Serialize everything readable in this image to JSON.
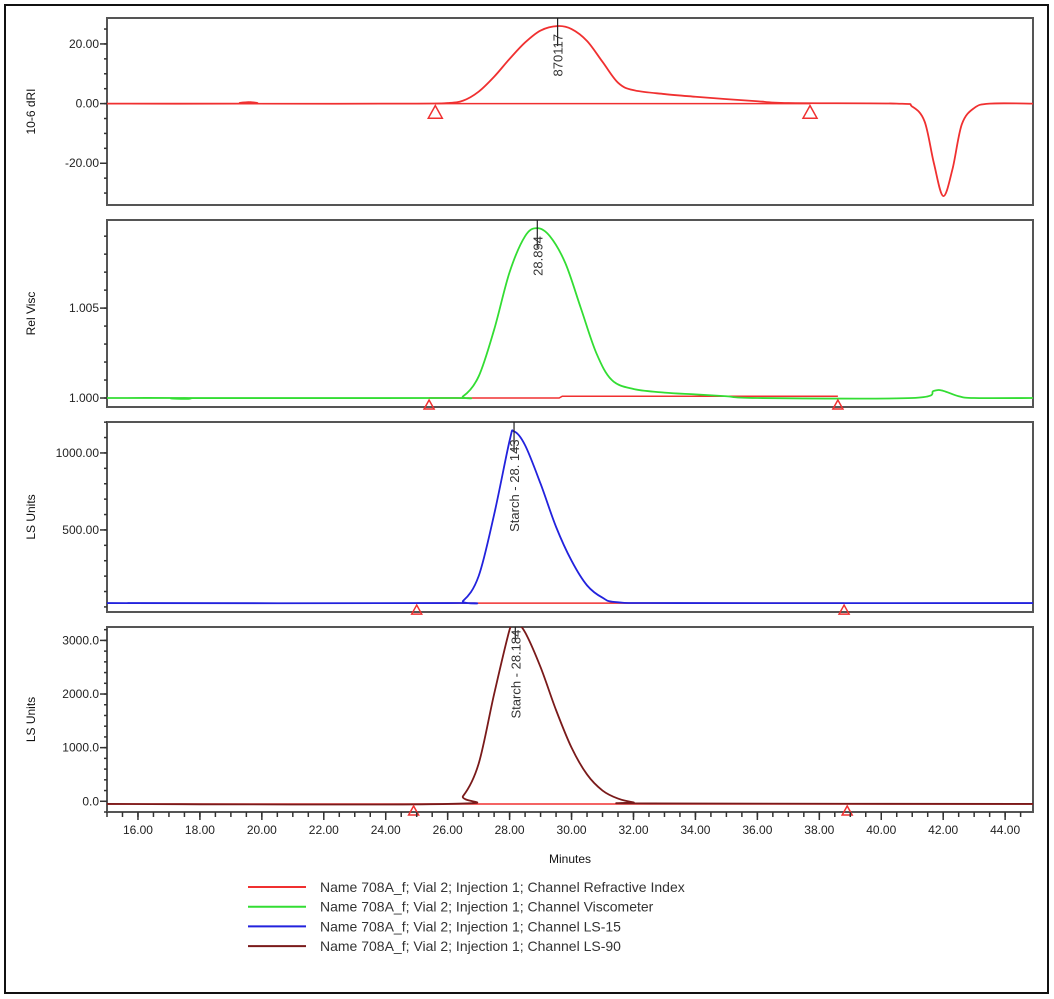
{
  "x_axis": {
    "label": "Minutes",
    "xlim": [
      15.0,
      44.9
    ],
    "ticks": [
      "16.00",
      "18.00",
      "20.00",
      "22.00",
      "24.00",
      "26.00",
      "28.00",
      "30.00",
      "32.00",
      "34.00",
      "36.00",
      "38.00",
      "40.00",
      "42.00",
      "44.00"
    ],
    "tick_values": [
      16,
      18,
      20,
      22,
      24,
      26,
      28,
      30,
      32,
      34,
      36,
      38,
      40,
      42,
      44
    ],
    "minor_step": 0.5
  },
  "legend": [
    {
      "label": "Name 708A_f; Vial 2; Injection 1; Channel Refractive Index",
      "color": "#f03030"
    },
    {
      "label": "Name 708A_f; Vial 2; Injection 1; Channel Viscometer",
      "color": "#33dd33"
    },
    {
      "label": "Name 708A_f; Vial 2; Injection 1; Channel LS-15",
      "color": "#2222dd"
    },
    {
      "label": "Name 708A_f; Vial 2; Injection 1; Channel LS-90",
      "color": "#7a1a1a"
    }
  ],
  "chart_data": [
    {
      "type": "line",
      "ylabel": "10-6 dRI",
      "ylim": [
        -34,
        28.7
      ],
      "yticks": [
        "20.00",
        "0.00",
        "-20.00"
      ],
      "ytick_values": [
        20,
        0,
        -20
      ],
      "yminor_step": 5,
      "grid": false,
      "series": [
        {
          "color": "#f03030",
          "x": [
            15,
            19.5,
            19.6,
            19.7,
            25,
            26,
            26.5,
            27,
            27.5,
            28,
            28.5,
            29,
            29.55,
            30,
            30.5,
            31,
            31.5,
            32,
            33,
            34,
            35,
            36,
            37,
            40.5,
            41,
            41.4,
            41.7,
            42,
            42.3,
            42.6,
            43,
            43.5,
            44.9
          ],
          "y": [
            0,
            0,
            0.5,
            0,
            0,
            0.2,
            1,
            4,
            9,
            15,
            20.5,
            24.5,
            26,
            25,
            21,
            14,
            7,
            4.5,
            3.2,
            2.3,
            1.5,
            0.8,
            0.2,
            0,
            -1,
            -6,
            -20,
            -31,
            -22,
            -7,
            -1.5,
            0,
            0
          ]
        }
      ],
      "baseline": {
        "color": "#f03030",
        "x": [
          25.6,
          37.7
        ],
        "y": [
          0,
          0
        ]
      },
      "markers": [
        25.6,
        37.7
      ],
      "peak": {
        "x": 29.55,
        "y": 26,
        "label": "870117"
      }
    },
    {
      "type": "line",
      "ylabel": "Rel Visc",
      "ylim": [
        0.9995,
        1.0099
      ],
      "yticks": [
        "1.005",
        "1.000"
      ],
      "ytick_values": [
        1.005,
        1.0
      ],
      "yminor_step": 0.001,
      "grid": false,
      "series": [
        {
          "color": "#33dd33",
          "x": [
            15,
            17.5,
            17.6,
            17.7,
            26,
            26.5,
            27,
            27.5,
            28,
            28.5,
            28.89,
            29.3,
            29.8,
            30.3,
            30.8,
            31.3,
            32,
            33,
            34,
            35,
            36,
            41,
            41.7,
            42,
            42.5,
            43,
            44.9
          ],
          "y": [
            1.0,
            1.0,
            0.99995,
            1.0,
            1.0,
            1.0001,
            1.0012,
            1.0038,
            1.007,
            1.009,
            1.00945,
            1.009,
            1.0075,
            1.005,
            1.0025,
            1.001,
            1.0005,
            1.0003,
            1.0002,
            1.0001,
            1.0,
            1.0,
            1.0004,
            1.0004,
            1.0001,
            1.0,
            1.0
          ]
        }
      ],
      "baseline": {
        "color": "#f03030",
        "x": [
          25.4,
          29.6,
          29.7,
          38.6
        ],
        "y": [
          1.0,
          1.0,
          1.0001,
          1.0001
        ]
      },
      "markers": [
        25.4,
        38.6
      ],
      "peak": {
        "x": 28.894,
        "y": 1.00945,
        "label": "28.894"
      }
    },
    {
      "type": "line",
      "ylabel": "LS Units",
      "ylim": [
        -33,
        1201
      ],
      "yticks": [
        "1000.00",
        "500.00"
      ],
      "ytick_values": [
        1000,
        500
      ],
      "yminor_step": 100,
      "grid": false,
      "series": [
        {
          "color": "#2222dd",
          "x": [
            15,
            26,
            26.5,
            27,
            27.5,
            28,
            28.14,
            28.5,
            29,
            29.5,
            30,
            30.5,
            31,
            31.5,
            33.5,
            44.9
          ],
          "y": [
            25,
            25,
            40,
            200,
            600,
            1080,
            1140,
            1050,
            800,
            520,
            300,
            140,
            60,
            30,
            25,
            25
          ]
        }
      ],
      "baseline": {
        "color": "#f03030",
        "x": [
          25.0,
          38.8
        ],
        "y": [
          25,
          25
        ]
      },
      "markers": [
        25.0,
        38.8
      ],
      "peak": {
        "x": 28.143,
        "y": 1140,
        "label": "Starch - 28. 143"
      }
    },
    {
      "type": "line",
      "ylabel": "LS Units",
      "ylim": [
        -200,
        3250
      ],
      "yticks": [
        "3000.0",
        "2000.0",
        "1000.0",
        "0.0"
      ],
      "ytick_values": [
        3000,
        2000,
        1000,
        0
      ],
      "yminor_step": 200,
      "grid": false,
      "series": [
        {
          "color": "#7a1a1a",
          "x": [
            15,
            26,
            26.5,
            27,
            27.5,
            28,
            28.18,
            28.5,
            29,
            29.5,
            30,
            30.5,
            31,
            31.5,
            32,
            32.5,
            44.9
          ],
          "y": [
            -50,
            -50,
            100,
            700,
            2000,
            3200,
            3350,
            3150,
            2500,
            1700,
            1000,
            500,
            200,
            50,
            -20,
            -40,
            -50
          ]
        }
      ],
      "baseline": {
        "color": "#f03030",
        "x": [
          15,
          44.9
        ],
        "y": [
          -50,
          -50
        ]
      },
      "markers": [
        24.9,
        38.9
      ],
      "peak": {
        "x": 28.184,
        "y": 3350,
        "label": "Starch - 28.184"
      }
    }
  ]
}
